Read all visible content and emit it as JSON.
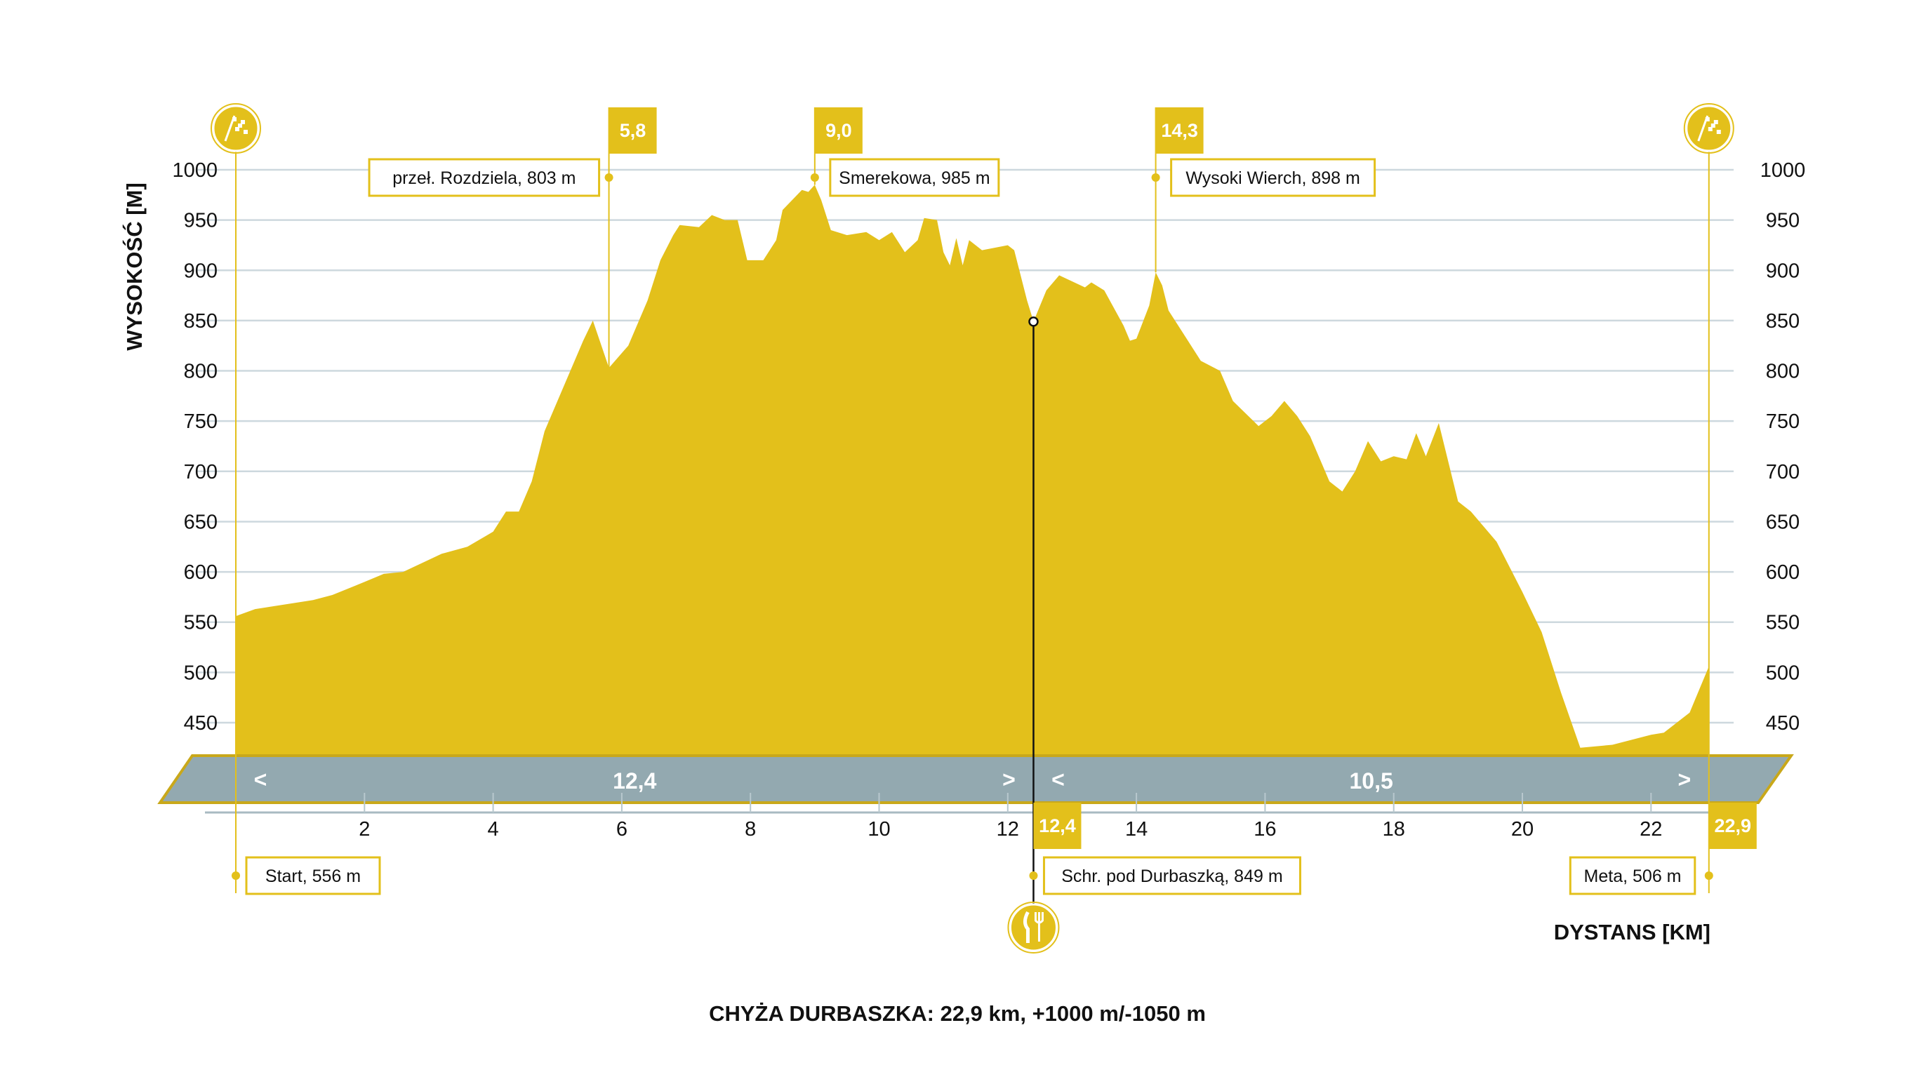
{
  "chart_data": {
    "type": "area",
    "title": "CHYŻA DURBASZKA: 22,9 km, +1000 m/-1050 m",
    "xlabel": "DYSTANS [KM]",
    "ylabel": "WYSOKOŚĆ [M]",
    "xlim": [
      0,
      22.9
    ],
    "ylim": [
      418,
      1000
    ],
    "x_ticks": [
      2,
      4,
      6,
      8,
      10,
      12,
      14,
      16,
      18,
      20,
      22
    ],
    "y_ticks": [
      450,
      500,
      550,
      600,
      650,
      700,
      750,
      800,
      850,
      900,
      950,
      1000
    ],
    "grid": true,
    "colors": {
      "fill": "#E3C01B",
      "band": "#93A9B0",
      "grid": "#CDD8DE",
      "marker": "#E3C01B"
    },
    "points": [
      [
        0,
        556
      ],
      [
        0.3,
        563
      ],
      [
        1,
        570
      ],
      [
        1.2,
        572
      ],
      [
        1.5,
        577
      ],
      [
        2,
        590
      ],
      [
        2.3,
        598
      ],
      [
        2.6,
        600
      ],
      [
        3,
        612
      ],
      [
        3.2,
        618
      ],
      [
        3.6,
        625
      ],
      [
        4,
        640
      ],
      [
        4.2,
        660
      ],
      [
        4.4,
        660
      ],
      [
        4.6,
        690
      ],
      [
        4.8,
        740
      ],
      [
        5.2,
        800
      ],
      [
        5.4,
        830
      ],
      [
        5.55,
        850
      ],
      [
        5.8,
        803
      ],
      [
        6.1,
        825
      ],
      [
        6.4,
        870
      ],
      [
        6.6,
        910
      ],
      [
        6.8,
        935
      ],
      [
        6.9,
        945
      ],
      [
        7.2,
        943
      ],
      [
        7.4,
        955
      ],
      [
        7.6,
        950
      ],
      [
        7.8,
        950
      ],
      [
        7.95,
        910
      ],
      [
        8.2,
        910
      ],
      [
        8.4,
        930
      ],
      [
        8.5,
        960
      ],
      [
        8.8,
        980
      ],
      [
        8.9,
        978
      ],
      [
        9.0,
        985
      ],
      [
        9.1,
        970
      ],
      [
        9.25,
        940
      ],
      [
        9.5,
        935
      ],
      [
        9.8,
        938
      ],
      [
        10.0,
        930
      ],
      [
        10.2,
        938
      ],
      [
        10.4,
        918
      ],
      [
        10.6,
        930
      ],
      [
        10.7,
        952
      ],
      [
        10.9,
        950
      ],
      [
        11.0,
        918
      ],
      [
        11.1,
        905
      ],
      [
        11.2,
        932
      ],
      [
        11.3,
        905
      ],
      [
        11.4,
        930
      ],
      [
        11.6,
        920
      ],
      [
        12.0,
        925
      ],
      [
        12.1,
        920
      ],
      [
        12.3,
        870
      ],
      [
        12.4,
        849
      ],
      [
        12.6,
        880
      ],
      [
        12.8,
        895
      ],
      [
        13.2,
        883
      ],
      [
        13.3,
        888
      ],
      [
        13.5,
        880
      ],
      [
        13.8,
        845
      ],
      [
        13.9,
        830
      ],
      [
        14.0,
        832
      ],
      [
        14.2,
        865
      ],
      [
        14.3,
        898
      ],
      [
        14.4,
        885
      ],
      [
        14.5,
        860
      ],
      [
        14.7,
        840
      ],
      [
        15.0,
        810
      ],
      [
        15.3,
        800
      ],
      [
        15.5,
        770
      ],
      [
        15.9,
        745
      ],
      [
        16.1,
        755
      ],
      [
        16.3,
        770
      ],
      [
        16.5,
        755
      ],
      [
        16.7,
        735
      ],
      [
        17.0,
        690
      ],
      [
        17.2,
        680
      ],
      [
        17.4,
        700
      ],
      [
        17.6,
        730
      ],
      [
        17.8,
        710
      ],
      [
        18.0,
        715
      ],
      [
        18.2,
        712
      ],
      [
        18.35,
        738
      ],
      [
        18.5,
        715
      ],
      [
        18.7,
        748
      ],
      [
        19.0,
        670
      ],
      [
        19.2,
        660
      ],
      [
        19.6,
        630
      ],
      [
        20.0,
        580
      ],
      [
        20.3,
        540
      ],
      [
        20.6,
        480
      ],
      [
        20.9,
        425
      ],
      [
        21.4,
        428
      ],
      [
        22,
        438
      ],
      [
        22.2,
        440
      ],
      [
        22.6,
        460
      ],
      [
        22.9,
        506
      ]
    ],
    "segments": [
      {
        "value": "12,4",
        "from_km": 0,
        "to_km": 12.4
      },
      {
        "value": "10,5",
        "from_km": 12.4,
        "to_km": 22.9
      }
    ],
    "top_markers": [
      {
        "km": 5.8,
        "km_label": "5,8",
        "label": "przeł. Rozdziela, 803 m",
        "elev": 803,
        "side": "left"
      },
      {
        "km": 9.0,
        "km_label": "9,0",
        "label": "Smerekowa, 985 m",
        "elev": 985,
        "side": "right"
      },
      {
        "km": 14.3,
        "km_label": "14,3",
        "label": "Wysoki Wierch, 898 m",
        "elev": 898,
        "side": "right"
      }
    ],
    "bottom_markers": [
      {
        "km": 0,
        "label": "Start, 556 m",
        "icon": "checkered-flag-icon",
        "side": "right"
      },
      {
        "km": 12.4,
        "km_label": "12,4",
        "label": "Schr. pod Durbaszką, 849 m",
        "elev": 849,
        "icon": "fork-knife-icon",
        "side": "right"
      },
      {
        "km": 22.9,
        "km_label": "22,9",
        "label": "Meta, 506 m",
        "icon": "checkered-flag-icon",
        "side": "left"
      }
    ],
    "band_arrows": {
      "left": "<",
      "right": ">"
    }
  }
}
